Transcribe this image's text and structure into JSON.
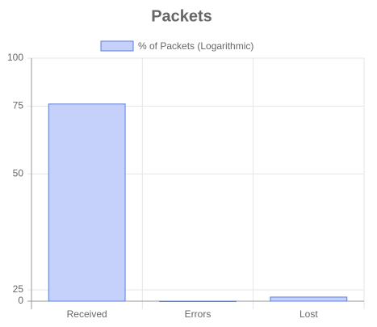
{
  "chart_data": {
    "type": "bar",
    "title": "Packets",
    "categories": [
      "Received",
      "Errors",
      "Lost"
    ],
    "series": [
      {
        "name": "% of Packets (Logarithmic)",
        "color": "#c5d1fb",
        "border_color": "#5a7fd6",
        "values": [
          76,
          0,
          9
        ]
      }
    ],
    "ylim": [
      0,
      100
    ],
    "yticks": [
      0,
      25,
      50,
      75,
      100
    ],
    "log_scale": true,
    "grid": true,
    "legend": "top"
  }
}
